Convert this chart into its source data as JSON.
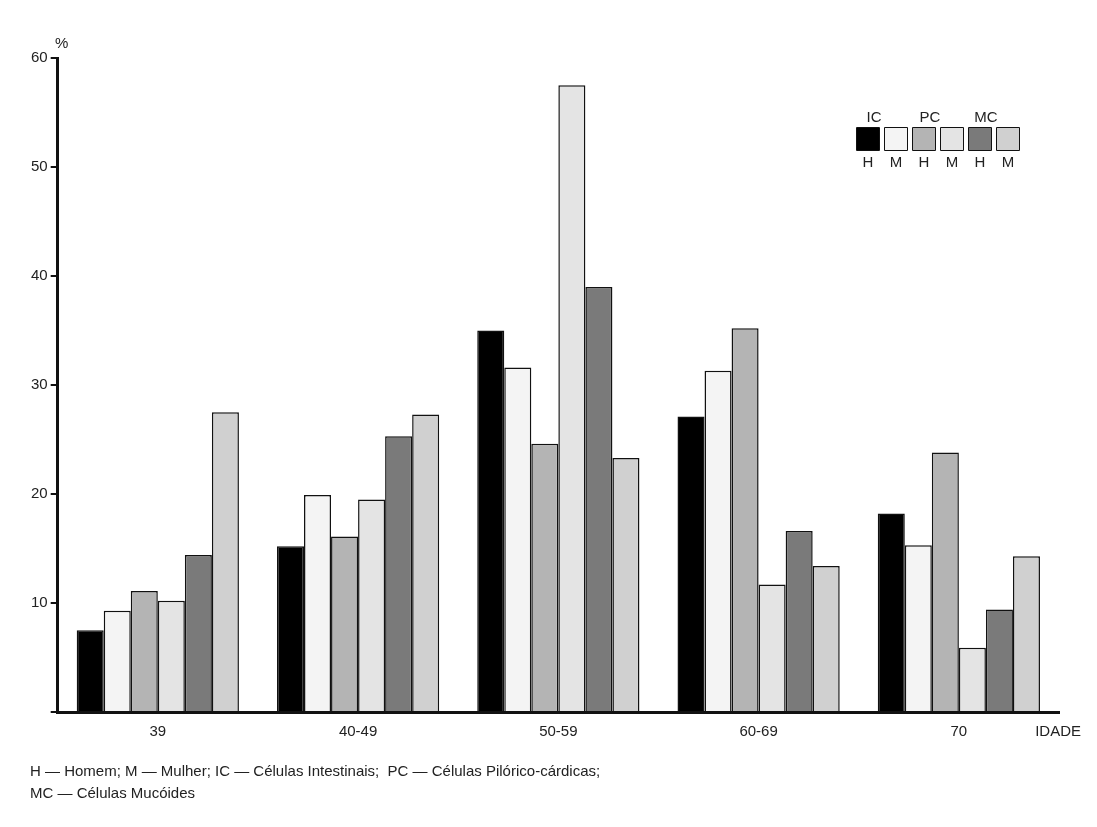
{
  "chart_data": {
    "type": "bar",
    "ylabel": "%",
    "xlabel": "IDADE",
    "categories": [
      "39",
      "40-49",
      "50-59",
      "60-69",
      "70"
    ],
    "series": [
      {
        "name": "H",
        "color": "#000000",
        "values": [
          7.5,
          15.2,
          35.0,
          27.1,
          18.2
        ]
      },
      {
        "name": "M",
        "color": "#f4f4f4",
        "values": [
          9.3,
          19.9,
          31.6,
          31.3,
          15.3
        ]
      },
      {
        "name": "H",
        "color": "#b4b4b4",
        "values": [
          11.1,
          16.1,
          24.6,
          35.2,
          23.8
        ]
      },
      {
        "name": "M",
        "color": "#e4e4e4",
        "values": [
          10.2,
          19.5,
          57.5,
          11.7,
          5.9
        ]
      },
      {
        "name": "H",
        "color": "#7a7a7a",
        "values": [
          14.4,
          25.3,
          39.0,
          16.6,
          9.4
        ]
      },
      {
        "name": "M",
        "color": "#d0d0d0",
        "values": [
          27.5,
          27.3,
          23.3,
          13.4,
          14.3
        ]
      }
    ],
    "ylim": [
      0,
      60
    ],
    "yticks": [
      {
        "value": 0,
        "label": null
      },
      10,
      20,
      30,
      40,
      50,
      60
    ],
    "grid": false,
    "legend": "top right",
    "annotations": [
      "IC",
      "PC",
      "MC",
      "H — Homem; M — Mulher; IC — Células Intestinais;  PC — Células Pilórico-cárdicas;",
      "MC — Células Mucóides"
    ]
  }
}
